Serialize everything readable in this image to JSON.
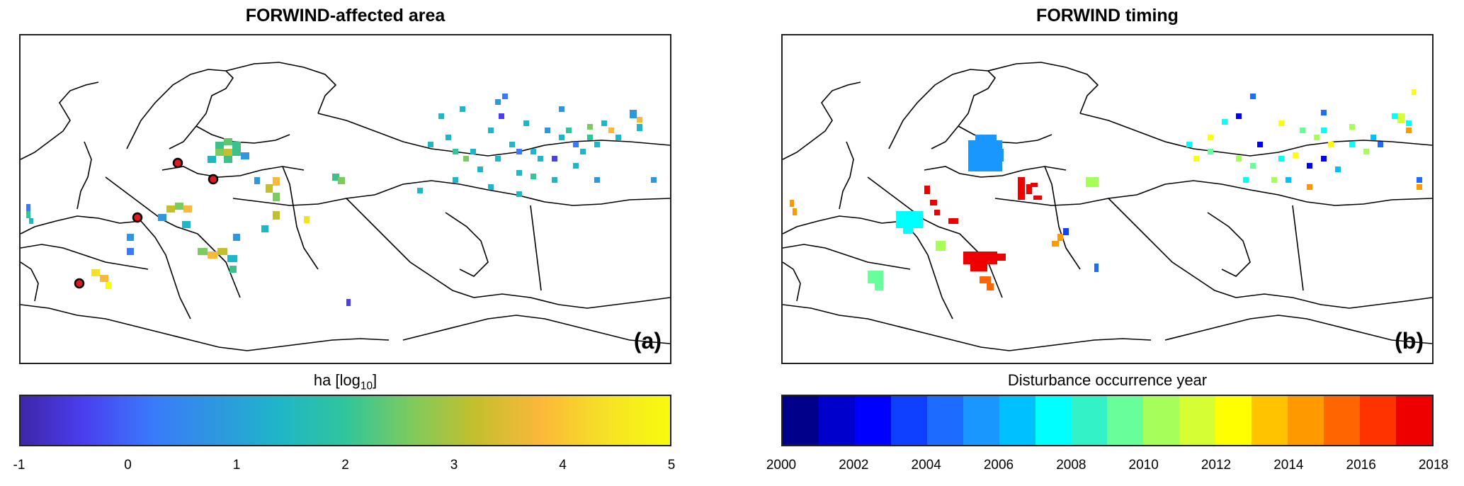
{
  "panel_a": {
    "title": "FORWIND-affected area",
    "label": "(a)",
    "colorbar_label_main": "ha [log",
    "colorbar_label_sub": "10",
    "colorbar_label_end": "]",
    "colorbar_ticks": [
      "-1",
      "0",
      "1",
      "2",
      "3",
      "4",
      "5"
    ],
    "colormap": [
      "#3e26a8",
      "#4a3ff0",
      "#3a79fb",
      "#2e97e0",
      "#1fb6c8",
      "#30c59c",
      "#7ccb5f",
      "#c4bf2c",
      "#fbb83a",
      "#f5e126",
      "#f9fb0e"
    ],
    "highlight_sites": 4
  },
  "panel_b": {
    "title": "FORWIND timing",
    "label": "(b)",
    "colorbar_label": "Disturbance occurrence year",
    "colorbar_ticks": [
      "2000",
      "2002",
      "2004",
      "2006",
      "2008",
      "2010",
      "2012",
      "2014",
      "2016",
      "2018"
    ],
    "colormap": [
      "#00008b",
      "#0000cc",
      "#0000ff",
      "#0f3fff",
      "#1d6bff",
      "#1a96ff",
      "#00c0ff",
      "#00ffff",
      "#33f2c7",
      "#66ff99",
      "#a6ff59",
      "#d4ff33",
      "#ffff00",
      "#ffc300",
      "#ff9900",
      "#ff6600",
      "#ff3300",
      "#ee0000"
    ]
  },
  "map": {
    "region": "Europe",
    "basemap": "country borders"
  }
}
